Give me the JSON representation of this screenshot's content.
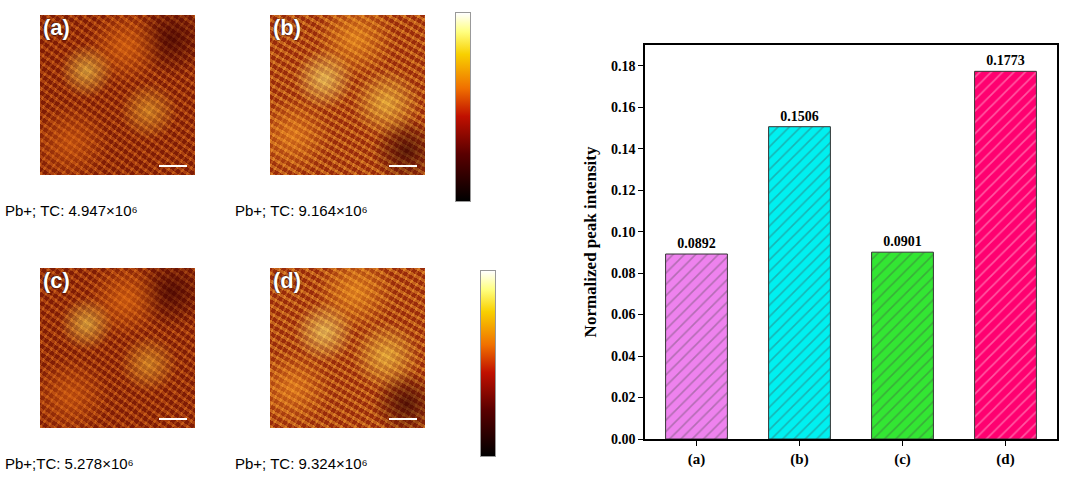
{
  "panels": [
    {
      "label": "(a)",
      "caption": "Pb+; TC: 4.947×10⁶"
    },
    {
      "label": "(b)",
      "caption": "Pb+; TC: 9.164×10⁶"
    },
    {
      "label": "(c)",
      "caption": "Pb+;TC: 5.278×10⁶"
    },
    {
      "label": "(d)",
      "caption": "Pb+; TC: 9.324×10⁶"
    }
  ],
  "chart_data": {
    "type": "bar",
    "y_label": "Normalized peak intensity",
    "categories": [
      "(a)",
      "(b)",
      "(c)",
      "(d)"
    ],
    "values": [
      0.0892,
      0.1506,
      0.0901,
      0.1773
    ],
    "colors": [
      "#ee82ee",
      "#00f0f0",
      "#33e633",
      "#ff0070"
    ],
    "ylim": [
      0,
      0.19
    ],
    "yticks": [
      {
        "value": 0,
        "label": "0.00"
      },
      {
        "value": 0.02,
        "label": "0.02"
      },
      {
        "value": 0.04,
        "label": "0.04"
      },
      {
        "value": 0.06,
        "label": "0.06"
      },
      {
        "value": 0.08,
        "label": "0.08"
      },
      {
        "value": 0.1,
        "label": "0.10"
      },
      {
        "value": 0.12,
        "label": "0.12"
      },
      {
        "value": 0.14,
        "label": "0.14"
      },
      {
        "value": 0.16,
        "label": "0.16"
      },
      {
        "value": 0.18,
        "label": "0.18"
      }
    ],
    "data_labels": true,
    "grid": false
  }
}
